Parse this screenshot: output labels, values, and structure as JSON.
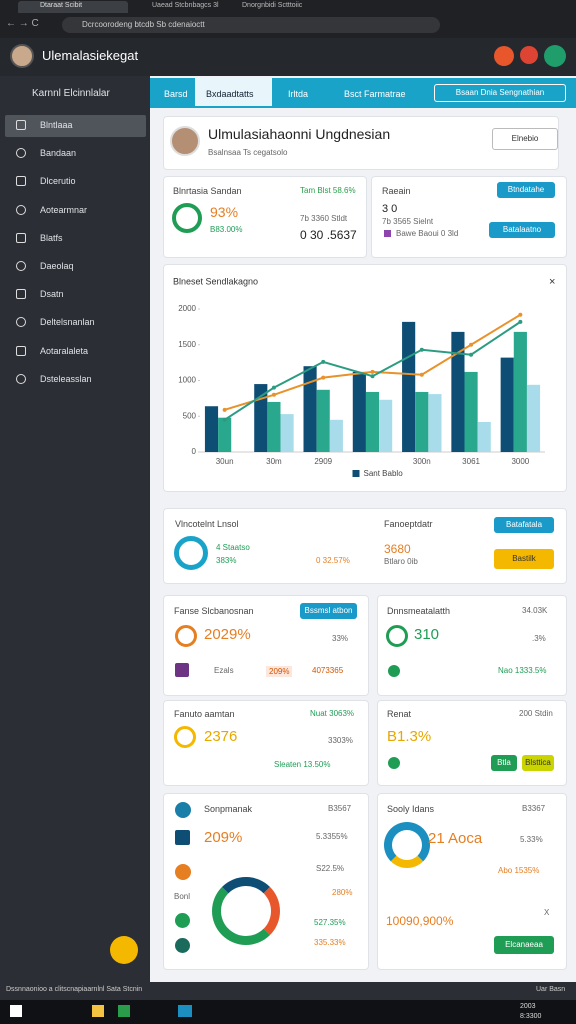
{
  "browser": {
    "tabs": [
      "Dtaraat Scibit",
      "Uaead Stcbnbagcs 3l",
      "Dnorgnbidi Sctttoiic"
    ],
    "url": "Dcrcoorodeng btcdb Sb cdenaioctt"
  },
  "header": {
    "title": "Ulemalasiekegat"
  },
  "sidebar": {
    "section": "Karnnl Elcinnlalar",
    "items": [
      "Blntlaaa",
      "Bandaan",
      "Dlcerutio",
      "Aotearmnar",
      "Blatfs",
      "Daeolaq",
      "Dsatn",
      "Deltelsnanlan",
      "Aotaralaleta",
      "Dsteleasslan"
    ]
  },
  "nav": {
    "tabs": [
      "Barsd",
      "Bxdaadtatts",
      "Irltda",
      "Bsct Farmatrae"
    ],
    "button": "Bsaan Dnia Sengnathian"
  },
  "profile": {
    "name": "Ulmulasiahaonni Ungdnesian",
    "subtitle": "Bsalnsaa Ts cegatsolo",
    "button": "Elnebio"
  },
  "cards": [
    {
      "texts": [
        "Blnrtasia Sandan",
        "Tam Blst 58.6%",
        "93%",
        "B83.00%",
        "7b 3360 Stldt",
        "0 30 .5637"
      ]
    },
    {
      "texts": [
        "Raeain",
        "3 0",
        "7b 3565 Sielnt",
        "Bawe Baoui 0 3ld"
      ],
      "buttons": [
        "Btndatahe",
        "Batalaatno"
      ]
    },
    {
      "texts": [
        "Vlncotelnt Lnsol",
        "4 Staatso",
        "383%",
        "0 32.57%",
        "Fanoeptdatr",
        "3680",
        "Btlaro 0ib"
      ],
      "buttons": [
        "Batafatala",
        "Bastilk"
      ]
    },
    {
      "texts": [
        "Fanse Slcbanosnan",
        "2029%",
        "33%",
        "Ezals",
        "209%",
        "4073365"
      ],
      "buttons": [
        "Bssmsl atbon"
      ]
    },
    {
      "texts": [
        "Dnnsmeatalatth",
        "34.03K",
        "310",
        ".3%",
        "Nao 1333.5%"
      ]
    },
    {
      "texts": [
        "Fanuto aamtan",
        "Nuat 3063%",
        "2376",
        "3303%",
        "Sleaten 13.50%"
      ]
    },
    {
      "texts": [
        "Renat",
        "200 Stdin",
        "B1.3%"
      ],
      "buttons": [
        "Btla",
        "Blsttica"
      ]
    },
    {
      "texts": [
        "Sonpmanak",
        "B3567",
        "209%",
        "5.3355%",
        "Bonl",
        "S22.5%",
        "280%",
        "527.35%",
        "335.33%"
      ]
    },
    {
      "texts": [
        "Sooly Idans",
        "B3367",
        "21 Aoca",
        "5.33%",
        "Abo 1535%",
        "10090,900%",
        "X"
      ],
      "buttons": [
        "Elcanaeaa"
      ]
    }
  ],
  "chart_data": {
    "type": "bar",
    "title": "Blneset Sendlakagno",
    "categories": [
      "30un",
      "30m",
      "2909",
      null,
      "300n",
      "3061",
      "3000"
    ],
    "series": [
      {
        "name": "Sant Bablo",
        "kind": "bar",
        "color": "#0e4d74",
        "values": [
          640,
          950,
          1200,
          1120,
          1820,
          1680,
          1320
        ]
      },
      {
        "kind": "bar",
        "color": "#2aa88e",
        "values": [
          480,
          700,
          870,
          840,
          840,
          1120,
          1680
        ]
      },
      {
        "kind": "bar",
        "color": "#a8dcea",
        "values": [
          null,
          530,
          450,
          730,
          810,
          420,
          940
        ]
      },
      {
        "kind": "line",
        "color": "#e8922b",
        "values": [
          590,
          800,
          1040,
          1120,
          1080,
          1500,
          1920
        ]
      },
      {
        "kind": "line",
        "color": "#2b9c82",
        "values": [
          450,
          900,
          1260,
          1060,
          1430,
          1360,
          1820
        ]
      }
    ],
    "ylim": [
      0,
      2000
    ],
    "yticks": [
      0,
      500,
      1000,
      1500,
      2000
    ],
    "grid": false
  },
  "status": {
    "left": "Dssnnaonioo a clitscnapiaarnlnl Sata Stcnin",
    "right": "Uar Basn"
  },
  "taskbar": {
    "time": "2003",
    "date": "8:3300"
  }
}
